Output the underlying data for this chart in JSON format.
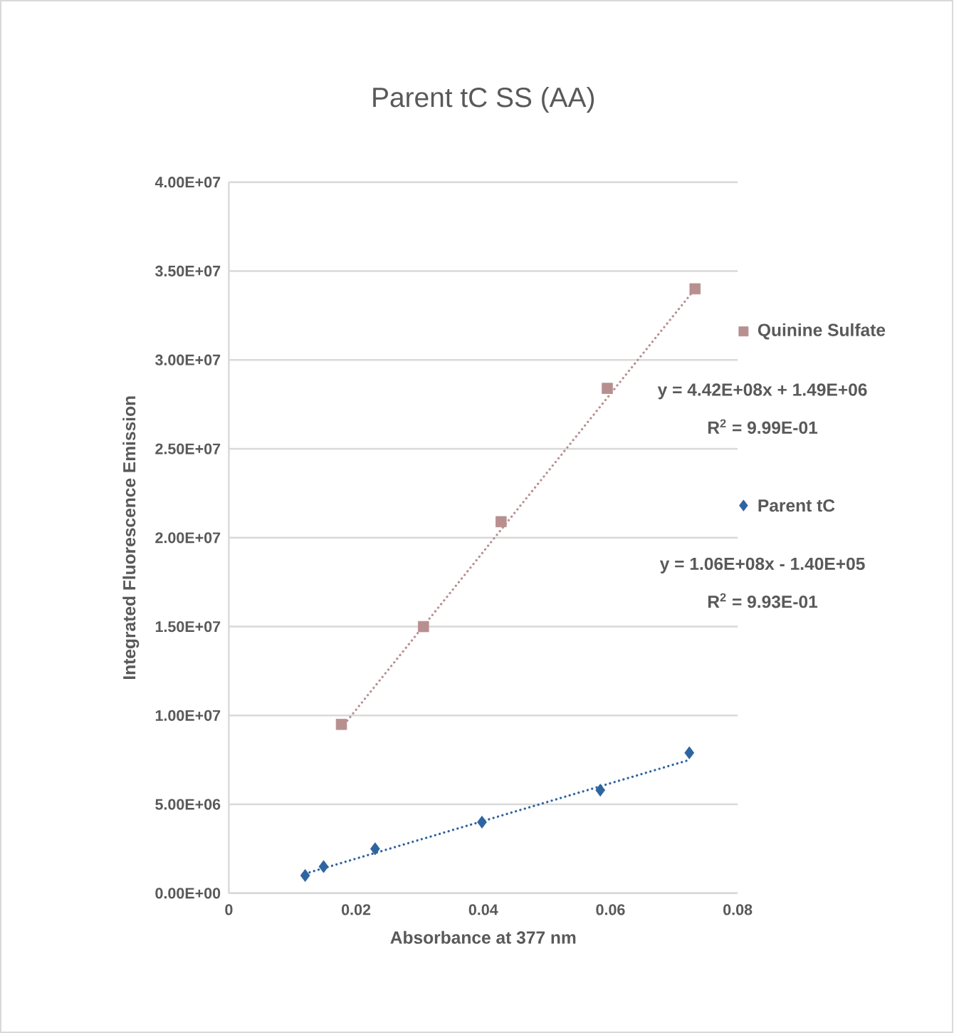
{
  "chart_data": {
    "type": "scatter",
    "title": "Parent tC SS (AA)",
    "xlabel": "Absorbance at 377 nm",
    "ylabel": "Integrated Fluorescence Emission",
    "x": [
      0.0177,
      0.0306,
      0.0428,
      0.0595,
      0.0733
    ],
    "series": [
      {
        "name": "Quinine Sulfate",
        "color": "#b88f8f",
        "marker": "square",
        "values": [
          9500000.0,
          15000000.0,
          20900000.0,
          28400000.0,
          34000000.0
        ]
      },
      {
        "type": "line",
        "color": "#b88f8f",
        "line_style": "dotted",
        "marker": "none",
        "x": [
          0.0177,
          0.0733
        ],
        "values": [
          9300000.0,
          34000000.0
        ]
      },
      {
        "name": "Parent tC",
        "color": "#2e64a0",
        "marker": "diamond",
        "x": [
          0.012,
          0.0149,
          0.023,
          0.0398,
          0.0584,
          0.0724
        ],
        "values": [
          1000000.0,
          1500000.0,
          2500000.0,
          4000000.0,
          5800000.0,
          7900000.0
        ]
      },
      {
        "type": "line",
        "color": "#2e64a0",
        "line_style": "dotted",
        "marker": "none",
        "x": [
          0.012,
          0.0724
        ],
        "values": [
          1100000.0,
          7500000.0
        ]
      }
    ],
    "annotations": [
      "y = 4.42E+08x + 1.49E+06",
      "R$^{2}$ = 9.99E-01",
      "y = 1.06E+08x - 1.40E+05",
      "R$^{2}$ = 9.93E-01"
    ],
    "xlim": [
      0,
      0.08
    ],
    "ylim": [
      0,
      40000000.0
    ],
    "xticks": [
      0,
      0.02,
      0.04,
      0.06,
      0.08
    ],
    "yticks": [
      {
        "value": 0,
        "label": "0.00E+00"
      },
      {
        "value": 5000000.0,
        "label": "5.00E+06"
      },
      {
        "value": 10000000.0,
        "label": "1.00E+07"
      },
      {
        "value": 15000000.0,
        "label": "1.50E+07"
      },
      {
        "value": 20000000.0,
        "label": "2.00E+07"
      },
      {
        "value": 25000000.0,
        "label": "2.50E+07"
      },
      {
        "value": 30000000.0,
        "label": "3.00E+07"
      },
      {
        "value": 35000000.0,
        "label": "3.50E+07"
      },
      {
        "value": 40000000.0,
        "label": "4.00E+07"
      }
    ],
    "grid": "y",
    "legend": "right"
  }
}
